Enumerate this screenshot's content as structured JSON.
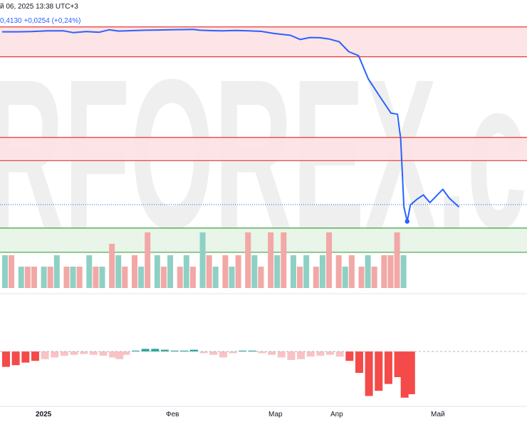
{
  "header": {
    "timestamp": "й 06, 2025 13:38 UTC+3",
    "quote": "0,4130 +0,0254 (+0,24%)"
  },
  "watermark": "RFOREX.c",
  "colors": {
    "price_line": "#2962ff",
    "resistance_zone_fill": "#fde1e3",
    "resistance_line": "#e53935",
    "support_zone_fill": "#e6f4e6",
    "support_line": "#43a047",
    "volume_up": "#8fd0c4",
    "volume_down": "#f2a8a6",
    "osc_negative_strong": "#f44a4a",
    "osc_negative_light": "#f9c3c5",
    "osc_positive": "#26a69a"
  },
  "chart_data": {
    "type": "line",
    "x_axis": {
      "tick_labels": [
        "2025",
        "Фев",
        "Мар",
        "Апр",
        "Май"
      ]
    },
    "price_series": [
      [
        "2025-01-01",
        0.47
      ],
      [
        "2025-01-06",
        0.47
      ],
      [
        "2025-01-10",
        0.46
      ],
      [
        "2025-01-15",
        0.43
      ],
      [
        "2025-01-20",
        0.43
      ],
      [
        "2025-01-23",
        0.51
      ],
      [
        "2025-01-27",
        0.46
      ],
      [
        "2025-01-31",
        0.49
      ],
      [
        "2025-02-03",
        0.38
      ],
      [
        "2025-02-06",
        0.44
      ],
      [
        "2025-02-10",
        0.42
      ],
      [
        "2025-02-14",
        0.4
      ],
      [
        "2025-02-18",
        0.39
      ],
      [
        "2025-02-22",
        0.38
      ],
      [
        "2025-02-26",
        0.37
      ],
      [
        "2025-03-01",
        0.36
      ],
      [
        "2025-03-03",
        0.4
      ],
      [
        "2025-03-07",
        0.42
      ],
      [
        "2025-03-10",
        0.43
      ],
      [
        "2025-03-14",
        0.41
      ],
      [
        "2025-03-18",
        0.43
      ],
      [
        "2025-03-22",
        0.45
      ],
      [
        "2025-03-26",
        0.55
      ],
      [
        "2025-03-31",
        0.63
      ],
      [
        "2025-04-03",
        0.82
      ],
      [
        "2025-04-06",
        0.73
      ],
      [
        "2025-04-09",
        0.74
      ],
      [
        "2025-04-12",
        0.8
      ],
      [
        "2025-04-15",
        0.92
      ],
      [
        "2025-04-18",
        1.37
      ],
      [
        "2025-04-21",
        1.55
      ],
      [
        "2025-04-24",
        2.6
      ],
      [
        "2025-04-28",
        3.5
      ],
      [
        "2025-05-01",
        4.15
      ],
      [
        "2025-05-03",
        4.2
      ],
      [
        "2025-05-04",
        5.3
      ],
      [
        "2025-05-05",
        8.4
      ],
      [
        "2025-05-06",
        9.05
      ],
      [
        "2025-05-07",
        8.3
      ],
      [
        "2025-05-09",
        8.05
      ],
      [
        "2025-05-11",
        7.85
      ],
      [
        "2025-05-13",
        8.2
      ],
      [
        "2025-05-15",
        7.9
      ],
      [
        "2025-05-17",
        7.6
      ],
      [
        "2025-05-19",
        8.0
      ],
      [
        "2025-05-22",
        8.4
      ]
    ],
    "zones": [
      {
        "type": "resistance",
        "from": 0.25,
        "to": 1.6
      },
      {
        "type": "resistance",
        "from": 5.25,
        "to": 6.3
      },
      {
        "type": "support",
        "from": 9.35,
        "to": 10.45
      }
    ],
    "volume": [
      [
        "2025-01-01",
        2,
        "up"
      ],
      [
        "2025-01-03",
        2,
        "down"
      ],
      [
        "2025-01-06",
        1,
        "up"
      ],
      [
        "2025-01-08",
        1,
        "down"
      ],
      [
        "2025-01-10",
        1,
        "down"
      ],
      [
        "2025-01-13",
        1,
        "up"
      ],
      [
        "2025-01-15",
        1,
        "down"
      ],
      [
        "2025-01-17",
        2,
        "up"
      ],
      [
        "2025-01-20",
        1,
        "down"
      ],
      [
        "2025-01-22",
        1,
        "up"
      ],
      [
        "2025-01-24",
        1,
        "down"
      ],
      [
        "2025-01-27",
        2,
        "up"
      ],
      [
        "2025-01-29",
        1,
        "down"
      ],
      [
        "2025-01-31",
        1,
        "up"
      ],
      [
        "2025-02-03",
        3,
        "down"
      ],
      [
        "2025-02-05",
        2,
        "up"
      ],
      [
        "2025-02-07",
        1,
        "down"
      ],
      [
        "2025-02-10",
        2,
        "down"
      ],
      [
        "2025-02-12",
        1,
        "up"
      ],
      [
        "2025-02-14",
        4,
        "down"
      ],
      [
        "2025-02-17",
        2,
        "up"
      ],
      [
        "2025-02-19",
        1,
        "down"
      ],
      [
        "2025-02-21",
        2,
        "up"
      ],
      [
        "2025-02-24",
        1,
        "down"
      ],
      [
        "2025-02-26",
        2,
        "up"
      ],
      [
        "2025-02-28",
        1,
        "down"
      ],
      [
        "2025-03-03",
        4,
        "up"
      ],
      [
        "2025-03-05",
        2,
        "down"
      ],
      [
        "2025-03-07",
        1,
        "up"
      ],
      [
        "2025-03-10",
        2,
        "down"
      ],
      [
        "2025-03-12",
        1,
        "up"
      ],
      [
        "2025-03-14",
        2,
        "down"
      ],
      [
        "2025-03-17",
        4,
        "down"
      ],
      [
        "2025-03-19",
        2,
        "up"
      ],
      [
        "2025-03-21",
        1,
        "down"
      ],
      [
        "2025-03-24",
        4,
        "down"
      ],
      [
        "2025-03-26",
        2,
        "up"
      ],
      [
        "2025-03-28",
        4,
        "down"
      ],
      [
        "2025-03-31",
        2,
        "up"
      ],
      [
        "2025-04-02",
        1,
        "down"
      ],
      [
        "2025-04-04",
        2,
        "up"
      ],
      [
        "2025-04-07",
        1,
        "down"
      ],
      [
        "2025-04-09",
        2,
        "up"
      ],
      [
        "2025-04-11",
        4,
        "down"
      ],
      [
        "2025-04-14",
        2,
        "down"
      ],
      [
        "2025-04-16",
        1,
        "up"
      ],
      [
        "2025-04-18",
        2,
        "down"
      ],
      [
        "2025-04-21",
        1,
        "down"
      ],
      [
        "2025-04-23",
        2,
        "up"
      ],
      [
        "2025-04-25",
        1,
        "down"
      ],
      [
        "2025-04-28",
        2,
        "down"
      ],
      [
        "2025-04-30",
        2,
        "down"
      ],
      [
        "2025-05-02",
        4,
        "down"
      ],
      [
        "2025-05-04",
        2,
        "up"
      ]
    ],
    "oscillator": [
      [
        "2025-01-01",
        -1.8
      ],
      [
        "2025-01-04",
        -1.6
      ],
      [
        "2025-01-07",
        -1.3
      ],
      [
        "2025-01-10",
        -1.1
      ],
      [
        "2025-01-13",
        -0.9
      ],
      [
        "2025-01-16",
        -0.7
      ],
      [
        "2025-01-19",
        -0.5
      ],
      [
        "2025-01-22",
        -0.4
      ],
      [
        "2025-01-25",
        -0.3
      ],
      [
        "2025-01-28",
        -0.4
      ],
      [
        "2025-01-31",
        -0.5
      ],
      [
        "2025-02-03",
        -0.7
      ],
      [
        "2025-02-05",
        -0.9
      ],
      [
        "2025-02-07",
        -0.4
      ],
      [
        "2025-02-10",
        0.1
      ],
      [
        "2025-02-13",
        0.3
      ],
      [
        "2025-02-16",
        0.3
      ],
      [
        "2025-02-19",
        0.2
      ],
      [
        "2025-02-22",
        0.1
      ],
      [
        "2025-02-25",
        0.1
      ],
      [
        "2025-02-28",
        0.2
      ],
      [
        "2025-03-03",
        -0.2
      ],
      [
        "2025-03-06",
        -0.4
      ],
      [
        "2025-03-09",
        -0.7
      ],
      [
        "2025-03-12",
        -0.2
      ],
      [
        "2025-03-15",
        0.1
      ],
      [
        "2025-03-18",
        0.1
      ],
      [
        "2025-03-21",
        -0.2
      ],
      [
        "2025-03-24",
        -0.4
      ],
      [
        "2025-03-27",
        -0.7
      ],
      [
        "2025-03-30",
        -1.0
      ],
      [
        "2025-04-02",
        -0.9
      ],
      [
        "2025-04-05",
        -0.6
      ],
      [
        "2025-04-08",
        -0.5
      ],
      [
        "2025-04-11",
        -0.4
      ],
      [
        "2025-04-14",
        -0.6
      ],
      [
        "2025-04-17",
        -1.1
      ],
      [
        "2025-04-20",
        -2.5
      ],
      [
        "2025-04-23",
        -5.2
      ],
      [
        "2025-04-26",
        -4.6
      ],
      [
        "2025-04-29",
        -3.8
      ],
      [
        "2025-05-02",
        -3.0
      ],
      [
        "2025-05-04",
        -5.4
      ],
      [
        "2025-05-06",
        -5.0
      ]
    ]
  }
}
